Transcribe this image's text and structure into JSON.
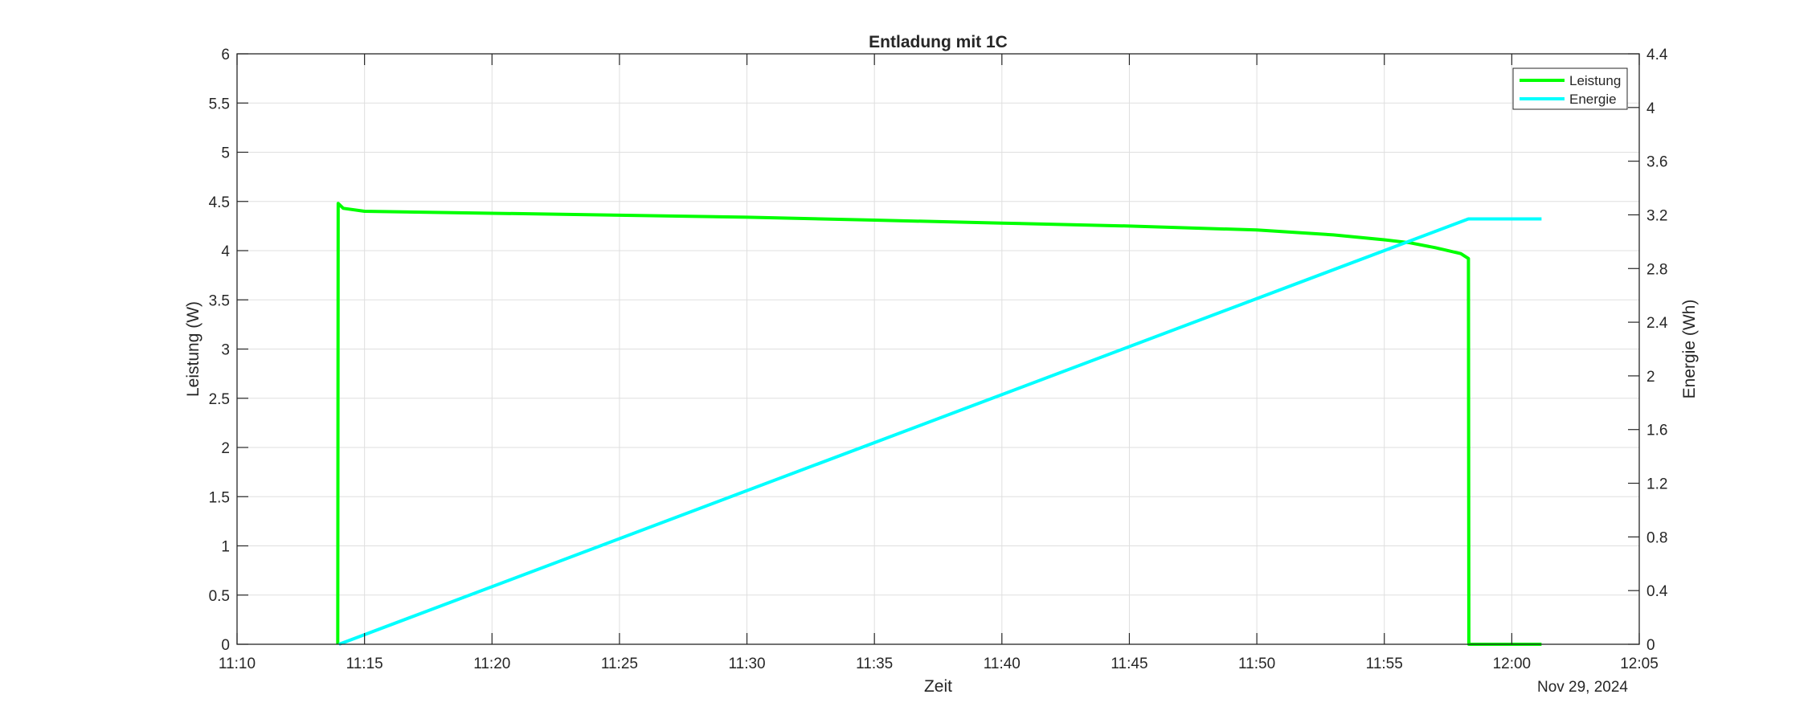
{
  "chart_data": {
    "type": "line",
    "title": "Entladung mit 1C",
    "xlabel": "Zeit",
    "x_date_label": "Nov 29, 2024",
    "ylabel_left": "Leistung (W)",
    "ylabel_right": "Energie (Wh)",
    "xlim": [
      "11:10",
      "12:05"
    ],
    "ylim_left": [
      0,
      6
    ],
    "ylim_right": [
      0,
      4.4
    ],
    "grid": true,
    "legend_position": "top-right",
    "x_ticks": [
      "11:10",
      "11:15",
      "11:20",
      "11:25",
      "11:30",
      "11:35",
      "11:40",
      "11:45",
      "11:50",
      "11:55",
      "12:00",
      "12:05"
    ],
    "y_ticks_left": [
      "0",
      "0.5",
      "1",
      "1.5",
      "2",
      "2.5",
      "3",
      "3.5",
      "4",
      "4.5",
      "5",
      "5.5",
      "6"
    ],
    "y_ticks_right": [
      "0",
      "0.4",
      "0.8",
      "1.2",
      "1.6",
      "2",
      "2.4",
      "2.8",
      "3.2",
      "3.6",
      "4",
      "4.4"
    ],
    "series": [
      {
        "name": "Leistung",
        "axis": "left",
        "color": "#00ff00",
        "x": [
          "11:13:57",
          "11:13:58",
          "11:14:10",
          "11:15:00",
          "11:20:00",
          "11:25:00",
          "11:30:00",
          "11:35:00",
          "11:40:00",
          "11:45:00",
          "11:50:00",
          "11:53:00",
          "11:55:00",
          "11:56:00",
          "11:57:00",
          "11:58:00",
          "11:58:18",
          "11:58:19",
          "12:01:10"
        ],
        "values": [
          0,
          4.48,
          4.43,
          4.4,
          4.38,
          4.36,
          4.34,
          4.31,
          4.28,
          4.25,
          4.21,
          4.16,
          4.11,
          4.08,
          4.03,
          3.97,
          3.92,
          0,
          0
        ]
      },
      {
        "name": "Energie",
        "axis": "right",
        "color": "#00ffff",
        "x": [
          "11:14:00",
          "11:58:18",
          "12:01:10"
        ],
        "values": [
          0,
          3.17,
          3.17
        ]
      }
    ]
  }
}
